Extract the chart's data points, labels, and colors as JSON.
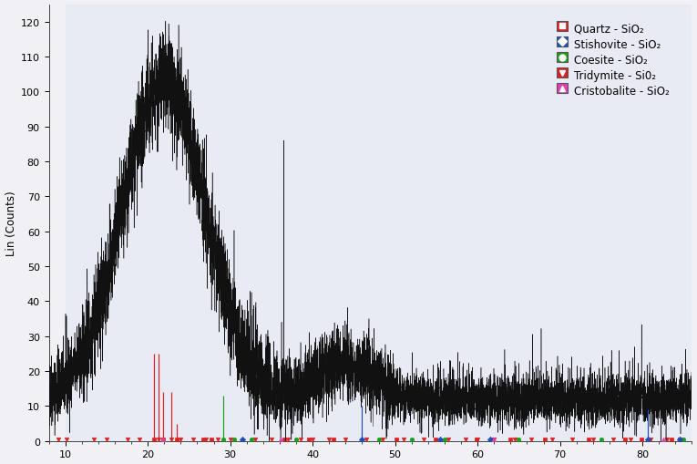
{
  "ylabel": "Lin (Counts)",
  "xlim": [
    8,
    86
  ],
  "ylim": [
    0,
    125
  ],
  "yticks": [
    0,
    10,
    20,
    30,
    40,
    50,
    60,
    70,
    80,
    90,
    100,
    110,
    120
  ],
  "xticks": [
    10,
    20,
    30,
    40,
    50,
    60,
    70,
    80
  ],
  "fig_bg_color": "#f0f0f5",
  "plot_bg_color": "#e8eaf4",
  "shaded_bg_color": "#dde0ee",
  "line_color": "#111111",
  "seed": 42,
  "quartz_peaks": [
    [
      20.8,
      25.0
    ],
    [
      21.9,
      14.0
    ],
    [
      23.5,
      5.0
    ],
    [
      26.7,
      2.0
    ],
    [
      27.7,
      2.0
    ],
    [
      36.6,
      2.5
    ],
    [
      39.5,
      2.0
    ],
    [
      42.5,
      2.0
    ],
    [
      50.2,
      2.0
    ],
    [
      54.9,
      2.0
    ],
    [
      59.9,
      2.0
    ],
    [
      64.0,
      2.0
    ],
    [
      68.2,
      2.0
    ],
    [
      73.5,
      2.0
    ],
    [
      77.9,
      2.0
    ],
    [
      79.9,
      2.0
    ],
    [
      83.5,
      2.0
    ]
  ],
  "stishovite_peaks": [
    [
      31.5,
      2.0
    ],
    [
      46.0,
      10.0
    ],
    [
      55.5,
      2.0
    ],
    [
      61.5,
      1.5
    ],
    [
      80.7,
      9.0
    ],
    [
      84.5,
      2.0
    ]
  ],
  "coesite_peaks": [
    [
      29.2,
      13.0
    ],
    [
      30.5,
      2.0
    ],
    [
      32.6,
      3.0
    ],
    [
      38.0,
      2.0
    ],
    [
      48.0,
      2.0
    ],
    [
      52.0,
      2.0
    ],
    [
      56.0,
      2.0
    ],
    [
      65.0,
      2.0
    ],
    [
      75.0,
      2.0
    ],
    [
      85.0,
      2.0
    ]
  ],
  "tridymite_peaks": [
    [
      9.2,
      1.5
    ],
    [
      10.2,
      1.5
    ],
    [
      13.5,
      1.5
    ],
    [
      15.0,
      1.5
    ],
    [
      17.5,
      1.5
    ],
    [
      19.0,
      1.5
    ],
    [
      21.3,
      25.0
    ],
    [
      22.8,
      14.0
    ],
    [
      24.0,
      4.0
    ],
    [
      25.5,
      2.0
    ],
    [
      27.0,
      2.0
    ],
    [
      28.5,
      2.0
    ],
    [
      30.0,
      2.0
    ],
    [
      33.0,
      2.0
    ],
    [
      35.0,
      2.0
    ],
    [
      37.0,
      2.0
    ],
    [
      38.5,
      2.0
    ],
    [
      40.0,
      2.0
    ],
    [
      42.0,
      2.0
    ],
    [
      44.0,
      2.0
    ],
    [
      46.5,
      2.0
    ],
    [
      48.5,
      2.0
    ],
    [
      51.0,
      2.0
    ],
    [
      53.5,
      2.0
    ],
    [
      56.5,
      2.0
    ],
    [
      58.5,
      2.0
    ],
    [
      60.0,
      2.0
    ],
    [
      62.0,
      2.0
    ],
    [
      64.5,
      2.0
    ],
    [
      66.5,
      2.0
    ],
    [
      69.0,
      2.0
    ],
    [
      71.5,
      2.0
    ],
    [
      74.0,
      2.0
    ],
    [
      76.5,
      2.0
    ],
    [
      78.5,
      2.0
    ],
    [
      81.0,
      2.0
    ],
    [
      83.0,
      2.0
    ],
    [
      84.5,
      2.0
    ]
  ],
  "cristobalite_peaks": [
    [
      21.9,
      2.0
    ],
    [
      36.1,
      2.0
    ],
    [
      62.0,
      2.0
    ],
    [
      82.5,
      2.0
    ]
  ],
  "quartz_color": "#dd2020",
  "stishovite_color": "#1a4fc4",
  "coesite_color": "#18a018",
  "tridymite_color": "#dd2020",
  "cristobalite_color": "#e040b0",
  "legend_entries": [
    {
      "label": "Quartz - SiO₂",
      "marker": "s",
      "facecolor": "#dd2020",
      "edgecolor": "#990000",
      "box_bg": "#dd2020",
      "box_edge": "#990000"
    },
    {
      "label": "Stishovite - SiO₂",
      "marker": "D",
      "facecolor": "#1a4fc4",
      "edgecolor": "#0a2070",
      "box_bg": "#1a4fc4",
      "box_edge": "#0a2070"
    },
    {
      "label": "Coesite - SiO₂",
      "marker": "o",
      "facecolor": "#18a018",
      "edgecolor": "#105010",
      "box_bg": "#18a018",
      "box_edge": "#105010"
    },
    {
      "label": "Tridymite - Si0₂",
      "marker": "v",
      "facecolor": "#dd2020",
      "edgecolor": "#990000",
      "box_bg": "#dd2020",
      "box_edge": "#990000"
    },
    {
      "label": "Cristobalite - SiO₂",
      "marker": "^",
      "facecolor": "#e040b0",
      "edgecolor": "#902070",
      "box_bg": "#e040b0",
      "box_edge": "#902070"
    }
  ]
}
